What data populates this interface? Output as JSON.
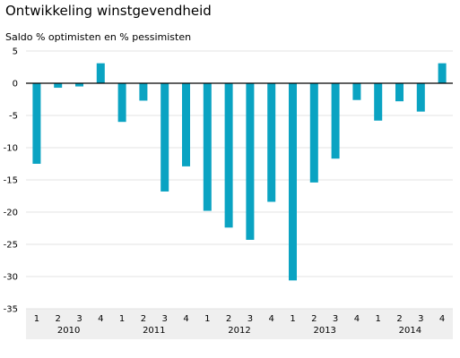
{
  "chart_data": {
    "type": "bar",
    "title": "Ontwikkeling winstgevendheid",
    "subtitle": "Saldo % optimisten en % pessimisten",
    "categories": [
      "1",
      "2",
      "3",
      "4",
      "1",
      "2",
      "3",
      "4",
      "1",
      "2",
      "3",
      "4",
      "1",
      "2",
      "3",
      "4",
      "1",
      "2",
      "3",
      "4"
    ],
    "year_groups": [
      {
        "label": "2010",
        "count": 4
      },
      {
        "label": "2011",
        "count": 4
      },
      {
        "label": "2012",
        "count": 4
      },
      {
        "label": "2013",
        "count": 4
      },
      {
        "label": "2014",
        "count": 4
      }
    ],
    "values": [
      -12.5,
      -0.7,
      -0.5,
      3.1,
      -6.0,
      -2.7,
      -16.8,
      -12.9,
      -19.8,
      -22.4,
      -24.3,
      -18.4,
      -30.6,
      -15.4,
      -11.7,
      -2.6,
      -5.8,
      -2.8,
      -4.4,
      3.1
    ],
    "ylim": [
      -35,
      5
    ],
    "yticks": [
      5,
      0,
      -5,
      -10,
      -15,
      -20,
      -25,
      -30,
      -35
    ],
    "bar_color": "#0aa3c2",
    "grid": "horizontal"
  }
}
